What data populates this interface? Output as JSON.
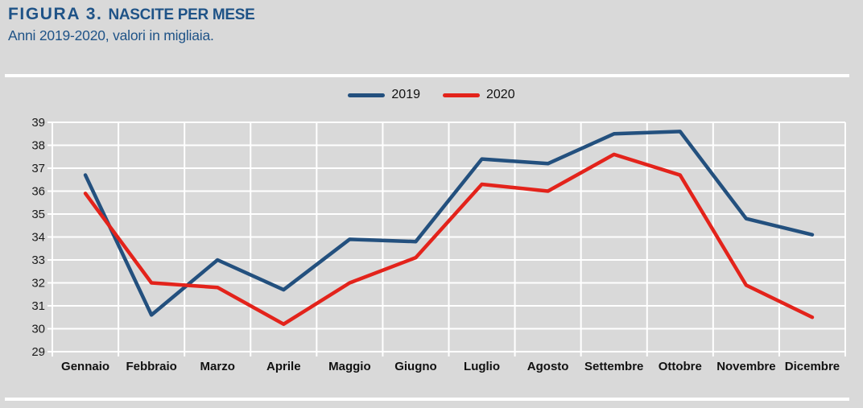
{
  "header": {
    "figure_label": "FIGURA 3.",
    "title": "NASCITE PER MESE",
    "subtitle": "Anni 2019-2020, valori in migliaia."
  },
  "chart_data": {
    "type": "line",
    "categories": [
      "Gennaio",
      "Febbraio",
      "Marzo",
      "Aprile",
      "Maggio",
      "Giugno",
      "Luglio",
      "Agosto",
      "Settembre",
      "Ottobre",
      "Novembre",
      "Dicembre"
    ],
    "series": [
      {
        "name": "2019",
        "color": "#23507E",
        "values": [
          36.7,
          30.6,
          33.0,
          31.7,
          33.9,
          33.8,
          37.4,
          37.2,
          38.5,
          38.6,
          34.8,
          34.1
        ]
      },
      {
        "name": "2020",
        "color": "#E3231B",
        "values": [
          35.9,
          32.0,
          31.8,
          30.2,
          32.0,
          33.1,
          36.3,
          36.0,
          37.6,
          36.7,
          31.9,
          30.5
        ]
      }
    ],
    "title": "NASCITE PER MESE",
    "xlabel": "",
    "ylabel": "",
    "ylim": [
      29,
      39
    ],
    "ytick_step": 1,
    "yticks": [
      29,
      30,
      31,
      32,
      33,
      34,
      35,
      36,
      37,
      38,
      39
    ],
    "grid": true,
    "legend_position": "top-center"
  },
  "colors": {
    "background": "#D9D9D9",
    "gridline": "#FFFFFF",
    "title_text": "#1F5387",
    "axis_text": "#1A1A1A"
  }
}
